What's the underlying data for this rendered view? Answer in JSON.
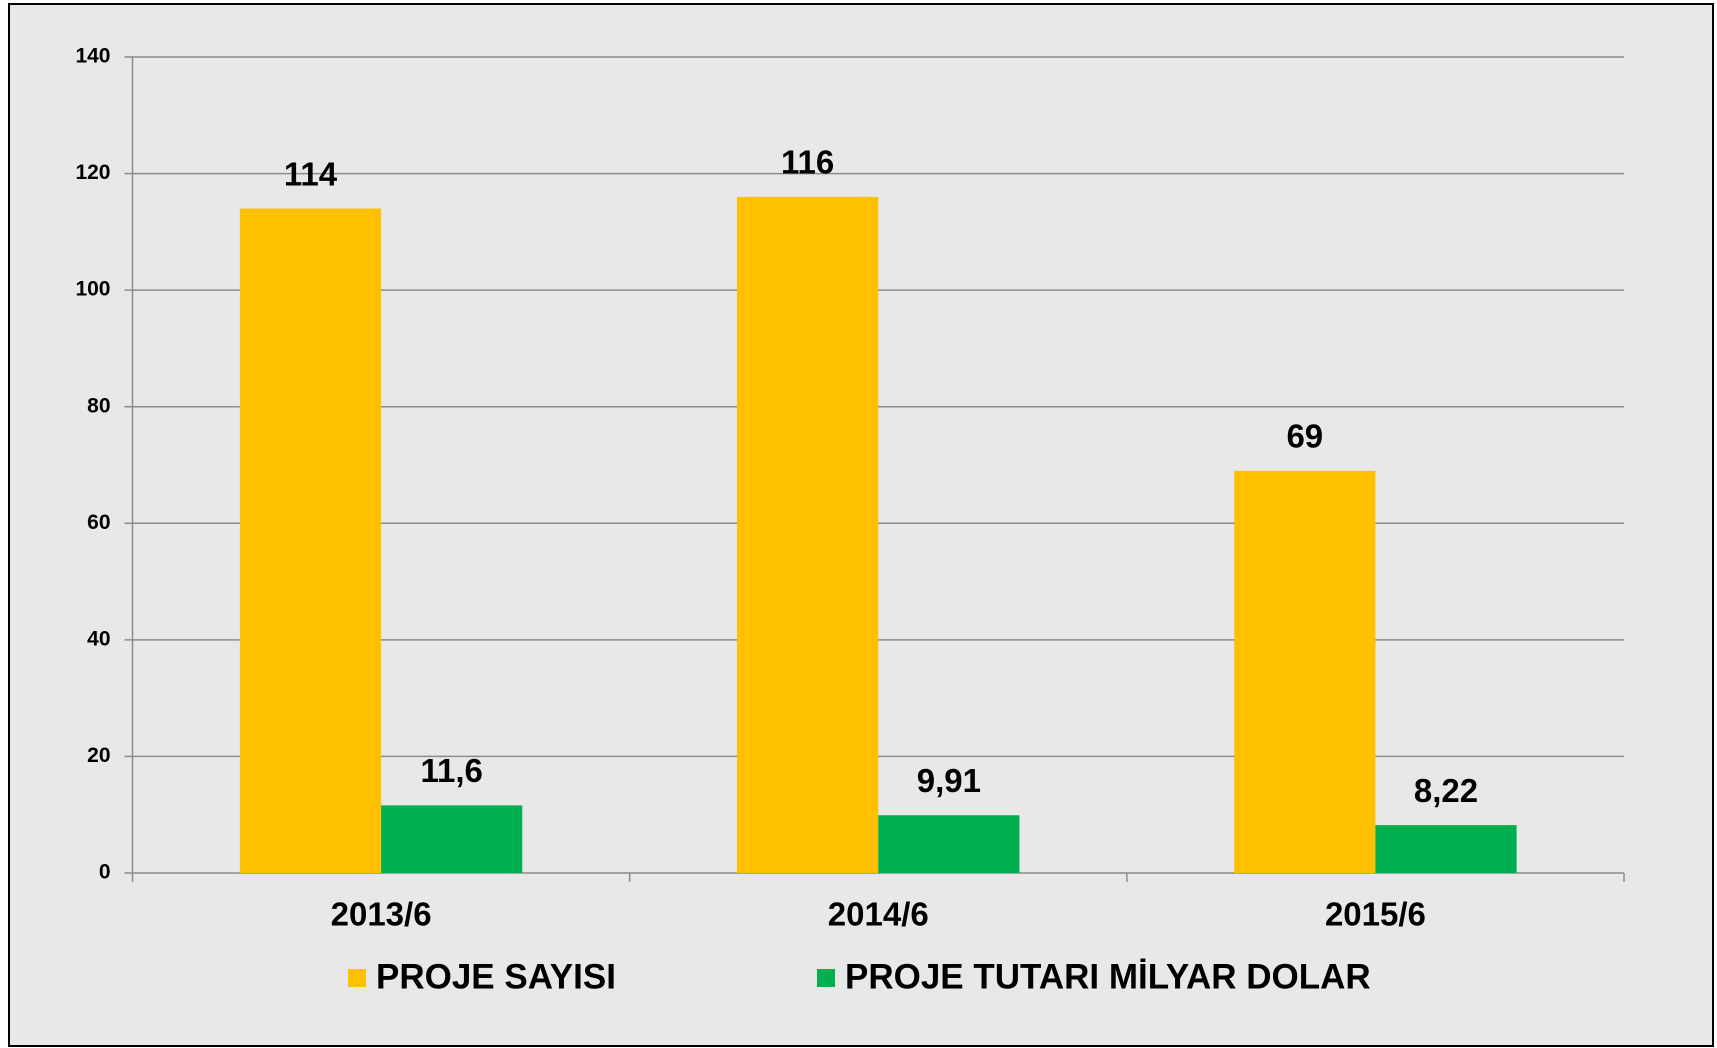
{
  "chart_data": {
    "type": "bar",
    "categories": [
      "2013/6",
      "2014/6",
      "2015/6"
    ],
    "series": [
      {
        "name": "PROJE SAYISI",
        "color": "#FFC000",
        "values": [
          114,
          116,
          69
        ]
      },
      {
        "name": "PROJE TUTARI MİLYAR DOLAR",
        "color": "#00B050",
        "values": [
          11.6,
          9.91,
          8.22
        ],
        "value_labels": [
          "11,6",
          "9,91",
          "8,22"
        ]
      }
    ],
    "ylim": [
      0,
      140
    ],
    "yticks": [
      0,
      20,
      40,
      60,
      80,
      100,
      120,
      140
    ],
    "grid": true,
    "legend": "bottom"
  }
}
